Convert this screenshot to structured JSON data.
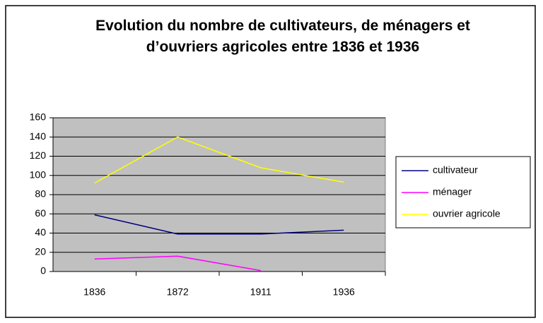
{
  "chart_data": {
    "type": "line",
    "title": "Evolution du nombre de cultivateurs, de ménagers et d’ouvriers agricoles entre 1836 et 1936",
    "categories": [
      "1836",
      "1872",
      "1911",
      "1936"
    ],
    "series": [
      {
        "name": "cultivateur",
        "color": "#000080",
        "values": [
          59,
          39,
          39,
          43
        ]
      },
      {
        "name": "ménager",
        "color": "#ff00ff",
        "values": [
          13,
          16,
          1,
          null
        ]
      },
      {
        "name": "ouvrier agricole",
        "color": "#ffff00",
        "values": [
          92,
          140,
          108,
          93
        ]
      }
    ],
    "ylim": [
      0,
      160
    ],
    "yticks": [
      0,
      20,
      40,
      60,
      80,
      100,
      120,
      140,
      160
    ],
    "grid": true,
    "plot_background": "#c0c0c0",
    "legend": "right"
  }
}
